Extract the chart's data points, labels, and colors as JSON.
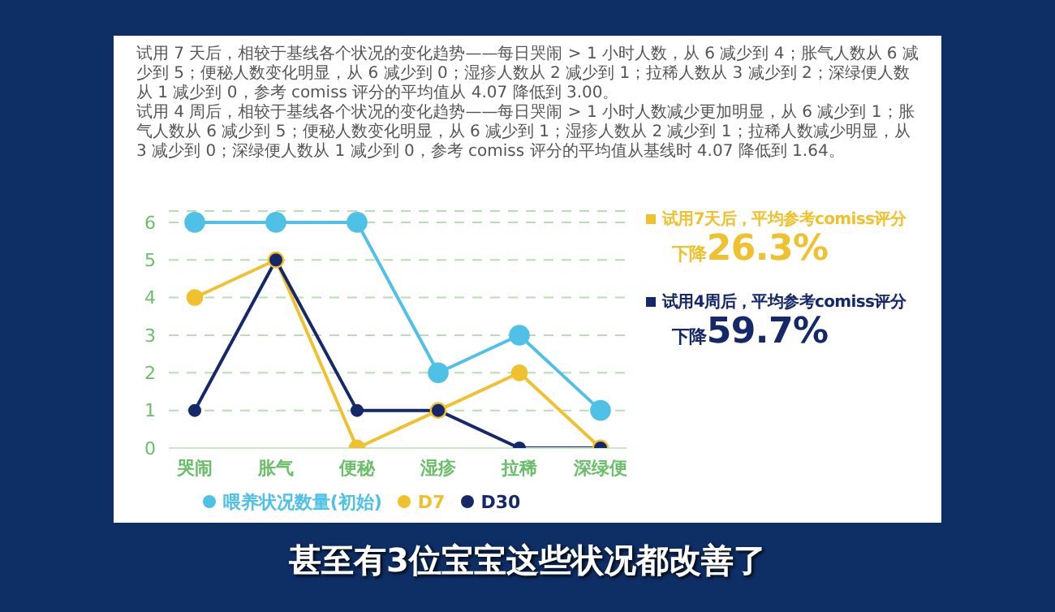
{
  "chart_data": {
    "type": "line",
    "categories": [
      "哭闹",
      "胀气",
      "便秘",
      "湿疹",
      "拉稀",
      "深绿便"
    ],
    "series": [
      {
        "name": "喂养状况数量(初始)",
        "color": "#4fc0e6",
        "values": [
          6,
          6,
          6,
          2,
          3,
          1
        ]
      },
      {
        "name": "D7",
        "color": "#f0c12e",
        "values": [
          4,
          5,
          0,
          1,
          2,
          0
        ]
      },
      {
        "name": "D30",
        "color": "#15286a",
        "values": [
          1,
          5,
          1,
          1,
          0,
          0
        ]
      }
    ],
    "ylim": [
      0,
      6.3
    ],
    "yticks": [
      0,
      1,
      2,
      3,
      4,
      5,
      6
    ],
    "grid": "y",
    "marker": "circle",
    "legend": "bottom",
    "annotations": [
      "试用 7 天后，相较于基线各个状况的变化趋势——每日哭闹 > 1 小时人数，从 6 减少到 4；胀气人数从 6 减少到 5；便秘人数变化明显，从 6 减少到 0；湿疹人数从 2 减少到 1；拉稀人数从 3 减少到 2；深绿便人数从 1 减少到 0，参考 comiss 评分的平均值从 4.07 降低到 3.00。",
      "试用 4 周后，相较于基线各个状况的变化趋势——每日哭闹 > 1 小时人数减少更加明显，从 6 减少到 1；胀气人数从 6 减少到 5；便秘人数变化明显，从 6 减少到 1；湿疹人数从 2 减少到 1；拉稀人数减少明显，从 3 减少到 0；深绿便人数从 1 减少到 0，参考 comiss 评分的平均值从基线时 4.07 降低到 1.64。",
      "试用7天后，平均参考comiss评分",
      "下降26.3%",
      "试用4周后，平均参考comiss评分",
      "下降59.7%",
      "甚至有3位宝宝这些状况都改善了"
    ]
  }
}
